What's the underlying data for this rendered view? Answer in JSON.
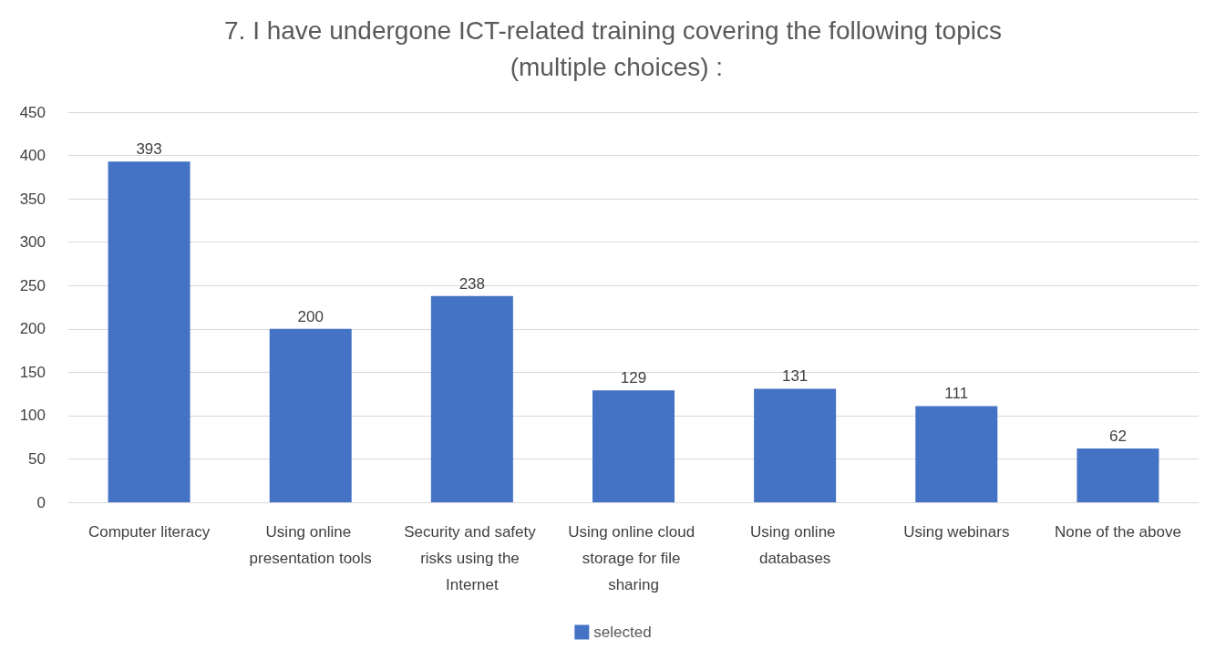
{
  "chart_data": {
    "type": "bar",
    "title": "7. I have undergone ICT-related training covering the following topics (multiple choices) :",
    "categories": [
      "Computer literacy",
      "Using online presentation tools",
      "Security and safety risks using the Internet",
      "Using online cloud storage for file sharing",
      "Using online databases",
      "Using webinars",
      "None of the above"
    ],
    "series": [
      {
        "name": "selected",
        "color": "#4472c4",
        "values": [
          393,
          200,
          238,
          129,
          131,
          111,
          62
        ]
      }
    ],
    "ylim": [
      0,
      450
    ],
    "yticks": [
      0,
      50,
      100,
      150,
      200,
      250,
      300,
      350,
      400,
      450
    ],
    "grid": "y",
    "legend": "bottom",
    "data_labels": true
  }
}
